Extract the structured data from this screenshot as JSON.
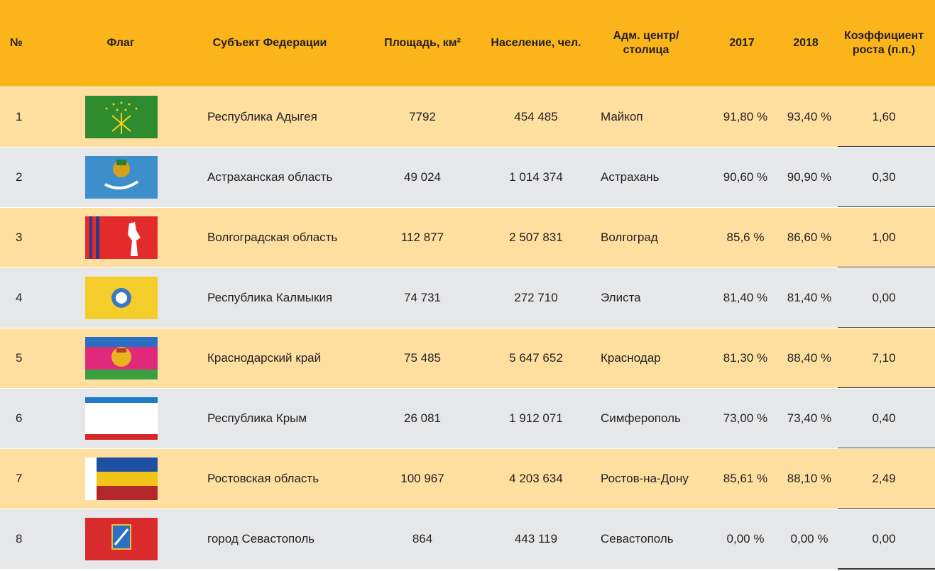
{
  "table": {
    "header": [
      "№",
      "Флаг",
      "Субъект Федерации",
      "Площадь, км²",
      "Население, чел.",
      "Адм. центр/столица",
      "2017",
      "2018",
      "Коэффициент роста (п.п.)"
    ],
    "rows": [
      [
        "1",
        "Республика Адыгея",
        "7792",
        "454 485",
        "Майкоп",
        "91,80 %",
        "93,40 %",
        "1,60"
      ],
      [
        "2",
        "Астраханская область",
        "49 024",
        "1 014 374",
        "Астрахань",
        "90,60 %",
        "90,90 %",
        "0,30"
      ],
      [
        "3",
        "Волгоградская область",
        "112 877",
        "2 507 831",
        "Волгоград",
        "85,6 %",
        "86,60 %",
        "1,00"
      ],
      [
        "4",
        "Республика Калмыкия",
        "74 731",
        "272 710",
        "Элиста",
        "81,40 %",
        "81,40 %",
        "0,00"
      ],
      [
        "5",
        "Краснодарский край",
        "75 485",
        "5 647 652",
        "Краснодар",
        "81,30 %",
        "88,40 %",
        "7,10"
      ],
      [
        "6",
        "Республика Крым",
        "26 081",
        "1 912 071",
        "Симферополь",
        "73,00 %",
        "73,40 %",
        "0,40"
      ],
      [
        "7",
        "Ростовская область",
        "100 967",
        "4 203 634",
        "Ростов-на-Дону",
        "85,61 %",
        "88,10 %",
        "2,49"
      ],
      [
        "8",
        "город Севастополь",
        "864",
        "443 119",
        "Севастополь",
        "0,00 %",
        "0,00 %",
        "0,00"
      ]
    ]
  }
}
